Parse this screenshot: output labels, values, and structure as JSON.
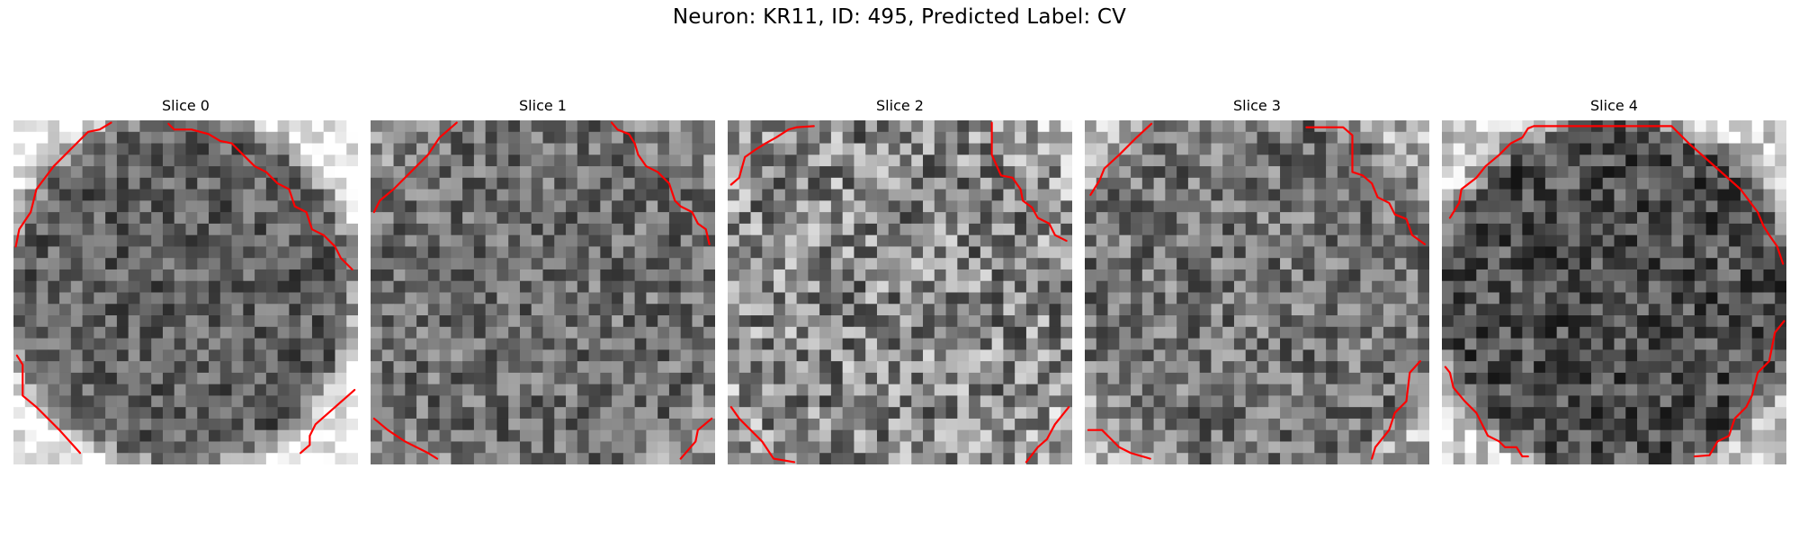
{
  "figure": {
    "title": "Neuron: KR11, ID: 495, Predicted Label: CV",
    "contour_color": "#ff0000",
    "colormap": "gray",
    "panels": [
      {
        "title": "Slice 0"
      },
      {
        "title": "Slice 1"
      },
      {
        "title": "Slice 2"
      },
      {
        "title": "Slice 3"
      },
      {
        "title": "Slice 4"
      }
    ]
  }
}
